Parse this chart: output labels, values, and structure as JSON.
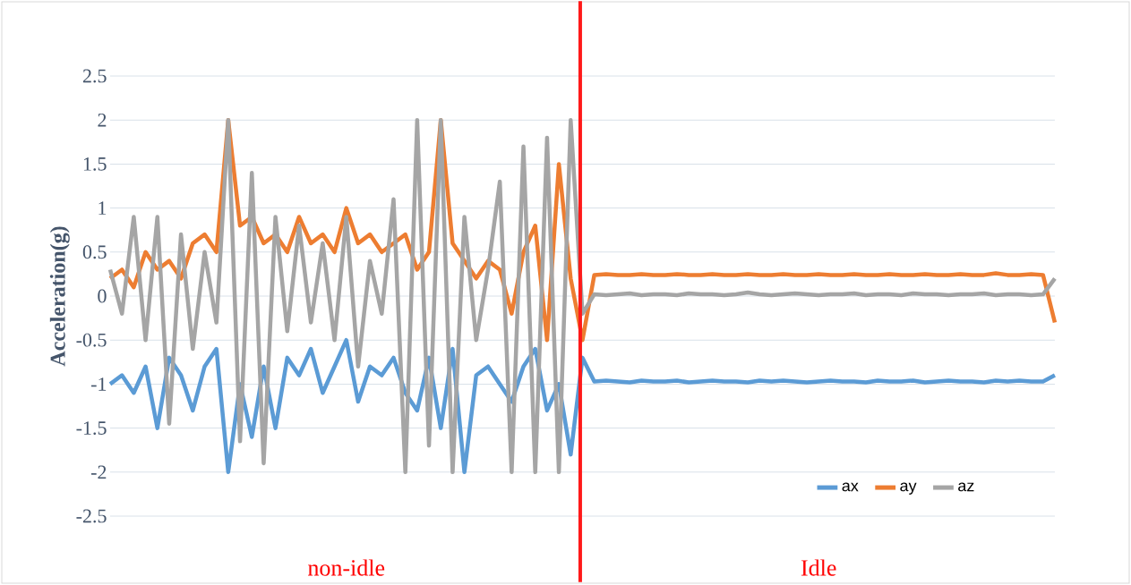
{
  "chart_data": {
    "type": "line",
    "ylabel": "Acceleration(g)",
    "categories": [
      null,
      null,
      null,
      null,
      null,
      null,
      null,
      null,
      null,
      null,
      null,
      null,
      null,
      null,
      null,
      null,
      null,
      null,
      null,
      null,
      null,
      null,
      null,
      null,
      null,
      null,
      null,
      null,
      null,
      null,
      null,
      null,
      null,
      null,
      null,
      null,
      null,
      null,
      null,
      null,
      null,
      null,
      null,
      null,
      null,
      null,
      null,
      null,
      null,
      null,
      null,
      null,
      null,
      null,
      null,
      null,
      null,
      null,
      null,
      null,
      null,
      null,
      null,
      null,
      null,
      null,
      null,
      null,
      null,
      null,
      null,
      null,
      null,
      null,
      null,
      null,
      null,
      null,
      null,
      null,
      null
    ],
    "series": [
      {
        "name": "ax",
        "color": "#5b9bd5",
        "values": [
          -1.0,
          -0.9,
          -1.1,
          -0.8,
          -1.5,
          -0.7,
          -0.9,
          -1.3,
          -0.8,
          -0.6,
          -2.0,
          -1.0,
          -1.6,
          -0.8,
          -1.5,
          -0.7,
          -0.9,
          -0.6,
          -1.1,
          -0.8,
          -0.5,
          -1.2,
          -0.8,
          -0.9,
          -0.7,
          -1.1,
          -1.3,
          -0.7,
          -1.5,
          -0.6,
          -2.0,
          -0.9,
          -0.8,
          -1.0,
          -1.2,
          -0.8,
          -0.6,
          -1.3,
          -1.0,
          -1.8,
          -0.7,
          -0.97,
          -0.96,
          -0.97,
          -0.98,
          -0.96,
          -0.97,
          -0.97,
          -0.96,
          -0.98,
          -0.97,
          -0.96,
          -0.97,
          -0.97,
          -0.98,
          -0.96,
          -0.97,
          -0.96,
          -0.97,
          -0.98,
          -0.97,
          -0.96,
          -0.97,
          -0.97,
          -0.98,
          -0.96,
          -0.97,
          -0.97,
          -0.96,
          -0.98,
          -0.97,
          -0.96,
          -0.97,
          -0.97,
          -0.98,
          -0.96,
          -0.97,
          -0.96,
          -0.97,
          -0.97,
          -0.9
        ]
      },
      {
        "name": "ay",
        "color": "#ed7d31",
        "values": [
          0.2,
          0.3,
          0.1,
          0.5,
          0.3,
          0.4,
          0.2,
          0.6,
          0.7,
          0.5,
          2.0,
          0.8,
          0.9,
          0.6,
          0.7,
          0.5,
          0.9,
          0.6,
          0.7,
          0.5,
          1.0,
          0.6,
          0.7,
          0.5,
          0.6,
          0.7,
          0.3,
          0.5,
          2.0,
          0.6,
          0.4,
          0.2,
          0.4,
          0.3,
          -0.2,
          0.5,
          0.8,
          -0.5,
          1.5,
          0.2,
          -0.5,
          0.24,
          0.25,
          0.24,
          0.24,
          0.25,
          0.24,
          0.24,
          0.25,
          0.24,
          0.24,
          0.25,
          0.24,
          0.24,
          0.25,
          0.24,
          0.24,
          0.25,
          0.24,
          0.24,
          0.25,
          0.24,
          0.24,
          0.25,
          0.24,
          0.24,
          0.25,
          0.24,
          0.24,
          0.25,
          0.24,
          0.24,
          0.25,
          0.24,
          0.24,
          0.26,
          0.24,
          0.24,
          0.25,
          0.24,
          -0.3
        ]
      },
      {
        "name": "az",
        "color": "#a5a5a5",
        "values": [
          0.3,
          -0.2,
          0.9,
          -0.5,
          0.9,
          -1.45,
          0.7,
          -0.6,
          0.5,
          -0.3,
          2.0,
          -1.65,
          1.4,
          -1.9,
          0.9,
          -0.4,
          0.8,
          -0.3,
          0.6,
          -0.5,
          0.9,
          -0.8,
          0.4,
          -0.2,
          1.1,
          -2.0,
          2.0,
          -1.7,
          2.0,
          -2.0,
          0.9,
          -0.5,
          0.3,
          1.3,
          -2.0,
          1.7,
          -2.0,
          1.8,
          -2.0,
          2.0,
          -0.2,
          0.02,
          0.01,
          0.02,
          0.03,
          0.01,
          0.02,
          0.02,
          0.01,
          0.03,
          0.02,
          0.02,
          0.01,
          0.02,
          0.04,
          0.02,
          0.01,
          0.02,
          0.03,
          0.02,
          0.01,
          0.02,
          0.02,
          0.03,
          0.01,
          0.02,
          0.02,
          0.01,
          0.03,
          0.02,
          0.02,
          0.01,
          0.02,
          0.02,
          0.03,
          0.01,
          0.02,
          0.02,
          0.01,
          0.02,
          0.2
        ]
      }
    ],
    "ylim": [
      -2.5,
      2.5
    ],
    "yticks": [
      -2.5,
      -2,
      -1.5,
      -1,
      -0.5,
      0,
      0.5,
      1,
      1.5,
      2,
      2.5
    ],
    "grid": "y",
    "legend": "bottom right",
    "marker": "none",
    "line_style": "solid",
    "annotations": [
      "non-idle",
      "Idle"
    ]
  }
}
